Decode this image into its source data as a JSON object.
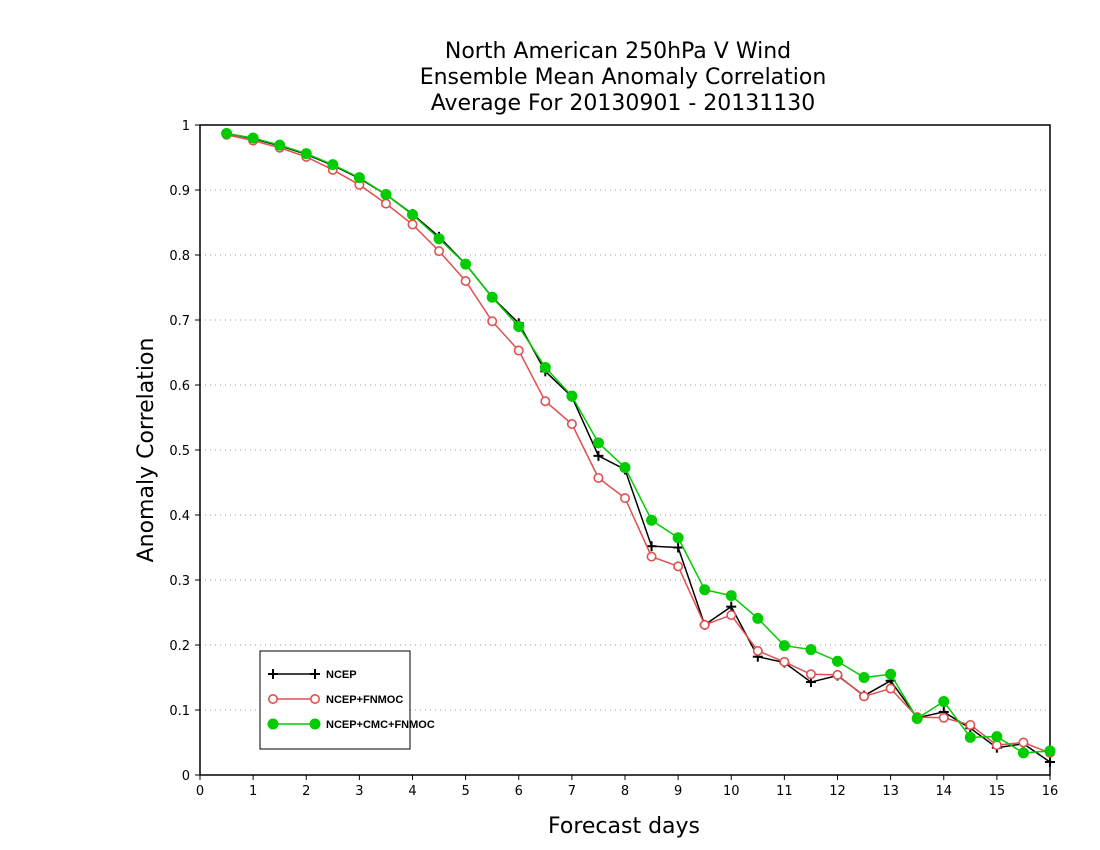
{
  "chart_data": {
    "type": "line",
    "title": [
      "North American 250hPa V Wind",
      "Ensemble Mean Anomaly Correlation",
      "Average For 20130901 - 20131130"
    ],
    "xlabel": "Forecast days",
    "ylabel": "Anomaly Correlation",
    "xlim": [
      0,
      16
    ],
    "ylim": [
      0,
      1
    ],
    "xticks": [
      "0",
      "1",
      "2",
      "3",
      "4",
      "5",
      "6",
      "7",
      "8",
      "9",
      "10",
      "11",
      "12",
      "13",
      "14",
      "15",
      "16"
    ],
    "yticks": [
      "0",
      "0.1",
      "0.2",
      "0.3",
      "0.4",
      "0.5",
      "0.6",
      "0.7",
      "0.8",
      "0.9",
      "1"
    ],
    "grid": "horizontal dotted",
    "legend_position": "bottom-left",
    "x": [
      0.5,
      1,
      1.5,
      2,
      2.5,
      3,
      3.5,
      4,
      4.5,
      5,
      5.5,
      6,
      6.5,
      7,
      7.5,
      8,
      8.5,
      9,
      9.5,
      10,
      10.5,
      11,
      11.5,
      12,
      12.5,
      13,
      13.5,
      14,
      14.5,
      15,
      15.5,
      16
    ],
    "series": [
      {
        "name": "NCEP",
        "color": "#000000",
        "marker": "plus",
        "values": [
          0.987,
          0.979,
          0.968,
          0.955,
          0.938,
          0.918,
          0.893,
          0.863,
          0.828,
          0.786,
          0.735,
          0.695,
          0.621,
          0.582,
          0.491,
          0.47,
          0.352,
          0.35,
          0.231,
          0.259,
          0.182,
          0.173,
          0.143,
          0.153,
          0.122,
          0.145,
          0.088,
          0.097,
          0.072,
          0.042,
          0.048,
          0.02
        ]
      },
      {
        "name": "NCEP+FNMOC",
        "color": "#e05050",
        "marker": "open-circle",
        "values": [
          0.985,
          0.976,
          0.965,
          0.951,
          0.931,
          0.908,
          0.879,
          0.847,
          0.806,
          0.76,
          0.698,
          0.653,
          0.575,
          0.54,
          0.457,
          0.426,
          0.336,
          0.321,
          0.231,
          0.246,
          0.191,
          0.174,
          0.155,
          0.154,
          0.121,
          0.133,
          0.089,
          0.088,
          0.077,
          0.046,
          0.05,
          0.034
        ]
      },
      {
        "name": "NCEP+CMC+FNMOC",
        "color": "#00cc00",
        "marker": "filled-circle",
        "values": [
          0.987,
          0.98,
          0.969,
          0.956,
          0.939,
          0.919,
          0.893,
          0.862,
          0.825,
          0.786,
          0.735,
          0.69,
          0.627,
          0.583,
          0.511,
          0.473,
          0.392,
          0.365,
          0.285,
          0.276,
          0.241,
          0.199,
          0.193,
          0.175,
          0.15,
          0.155,
          0.087,
          0.113,
          0.058,
          0.059,
          0.034,
          0.037
        ]
      }
    ]
  }
}
